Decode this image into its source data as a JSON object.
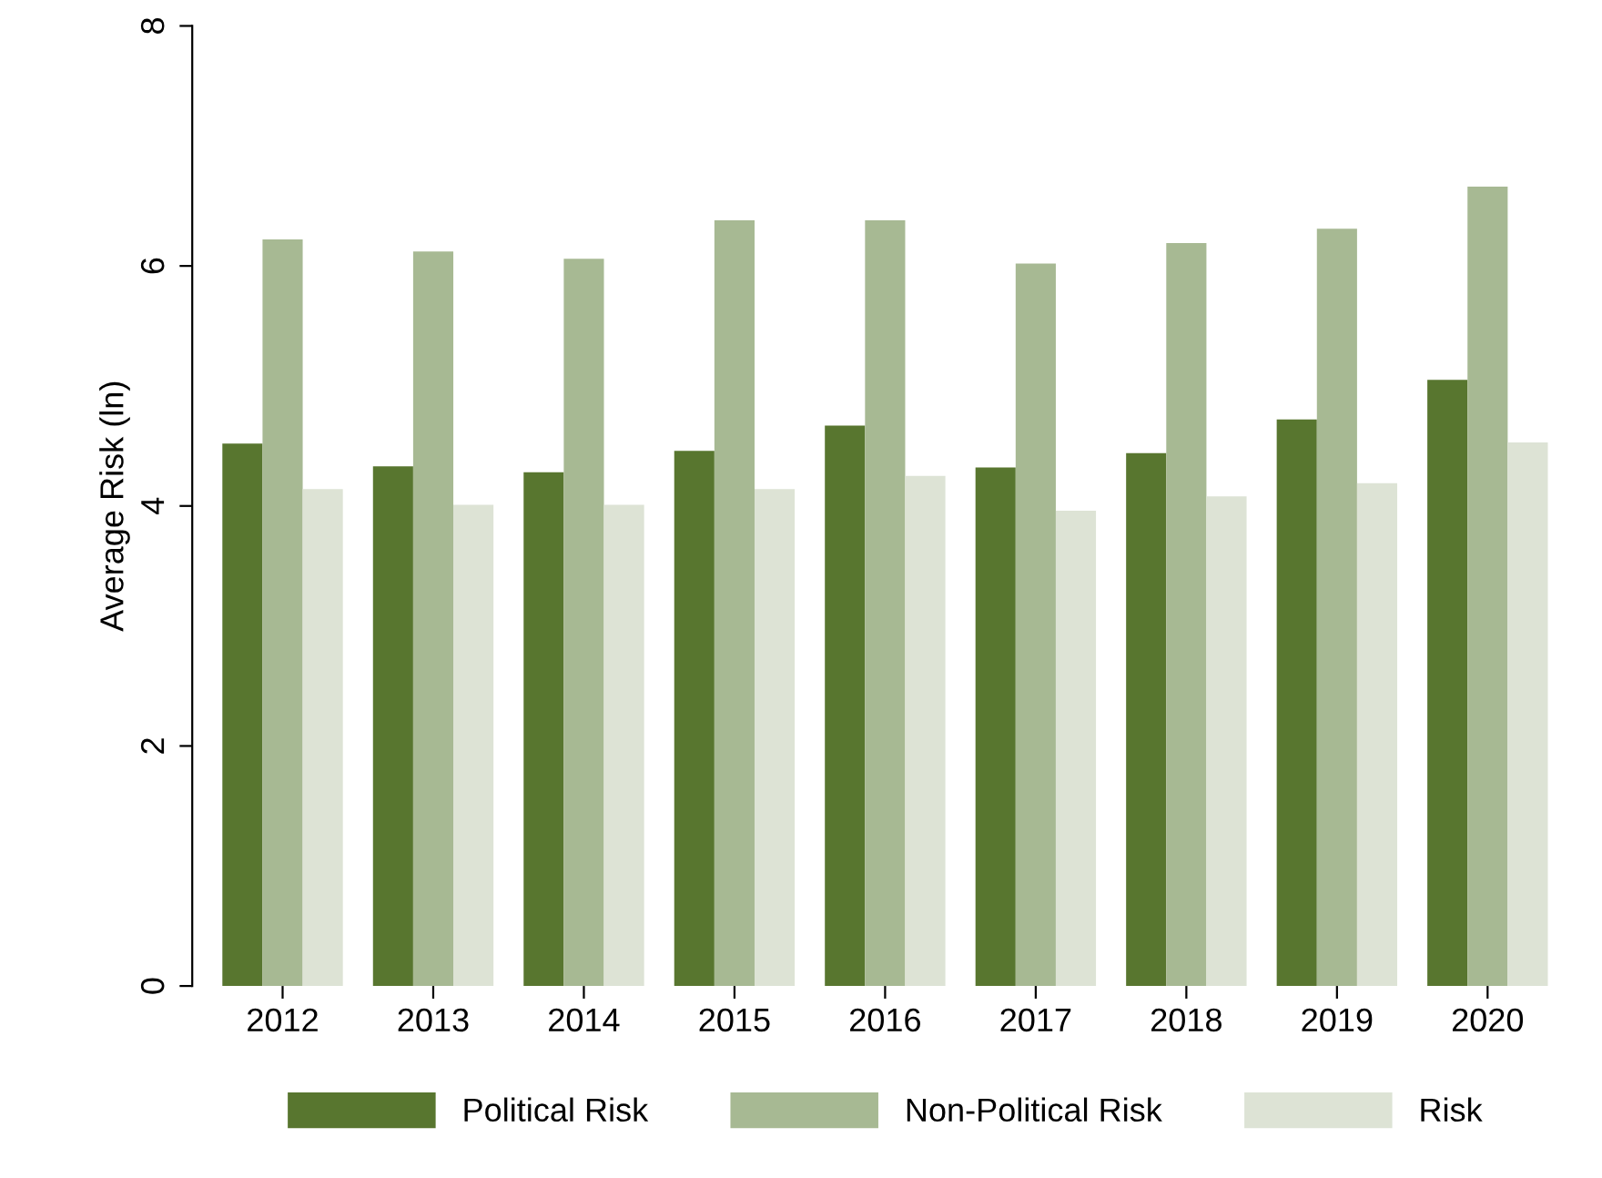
{
  "chart_data": {
    "type": "bar",
    "ylabel": "Average Risk (ln)",
    "categories": [
      "2012",
      "2013",
      "2014",
      "2015",
      "2016",
      "2017",
      "2018",
      "2019",
      "2020"
    ],
    "series": [
      {
        "name": "Political Risk",
        "color": "#58762f",
        "values": [
          4.52,
          4.33,
          4.28,
          4.46,
          4.67,
          4.32,
          4.44,
          4.72,
          5.05
        ]
      },
      {
        "name": "Non-Political Risk",
        "color": "#a7b993",
        "values": [
          6.22,
          6.12,
          6.06,
          6.38,
          6.38,
          6.02,
          6.19,
          6.31,
          6.66
        ]
      },
      {
        "name": "Risk",
        "color": "#dde3d5",
        "values": [
          4.14,
          4.01,
          4.01,
          4.14,
          4.25,
          3.96,
          4.08,
          4.19,
          4.53
        ]
      }
    ],
    "ylim": [
      0,
      8
    ],
    "yticks": [
      0,
      2,
      4,
      6,
      8
    ],
    "grid": false,
    "legend": "bottom"
  }
}
